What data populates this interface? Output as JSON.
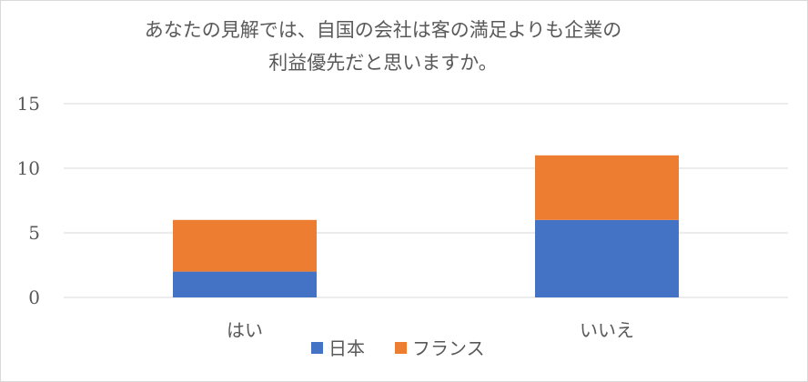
{
  "chart_data": {
    "type": "bar",
    "stacked": true,
    "title_lines": [
      "あなたの見解では、自国の会社は客の満足よりも企業の",
      "利益優先だと思いますか。"
    ],
    "categories": [
      "はい",
      "いいえ"
    ],
    "series": [
      {
        "name": "日本",
        "values": [
          2,
          6
        ],
        "color": "#4472c4"
      },
      {
        "name": "フランス",
        "values": [
          4,
          5
        ],
        "color": "#ed7d31"
      }
    ],
    "ylim": [
      0,
      15
    ],
    "yticks": [
      "0",
      "5",
      "10",
      "15"
    ],
    "grid": true,
    "legend_position": "bottom"
  }
}
